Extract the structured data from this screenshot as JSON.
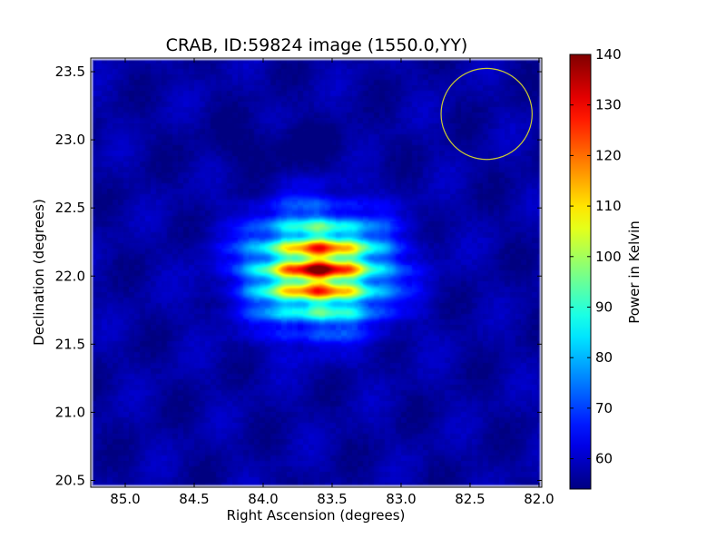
{
  "chart_data": {
    "type": "heatmap",
    "title": "CRAB, ID:59824 image (1550.0,YY)",
    "xlabel": "Right Ascension (degrees)",
    "ylabel": "Declination (degrees)",
    "colorbar_label": "Power in Kelvin",
    "xlim": [
      85.25,
      81.98
    ],
    "ylim": [
      20.45,
      23.6
    ],
    "x_ticks": [
      {
        "value": 85.0,
        "label": "85.0"
      },
      {
        "value": 84.5,
        "label": "84.5"
      },
      {
        "value": 84.0,
        "label": "84.0"
      },
      {
        "value": 83.5,
        "label": "83.5"
      },
      {
        "value": 83.0,
        "label": "83.0"
      },
      {
        "value": 82.5,
        "label": "82.5"
      },
      {
        "value": 82.0,
        "label": "82.0"
      }
    ],
    "y_ticks": [
      {
        "value": 20.5,
        "label": "20.5"
      },
      {
        "value": 21.0,
        "label": "21.0"
      },
      {
        "value": 21.5,
        "label": "21.5"
      },
      {
        "value": 22.0,
        "label": "22.0"
      },
      {
        "value": 22.5,
        "label": "22.5"
      },
      {
        "value": 23.0,
        "label": "23.0"
      },
      {
        "value": 23.5,
        "label": "23.5"
      }
    ],
    "colorbar_range": [
      54,
      140
    ],
    "colorbar_ticks": [
      {
        "value": 60,
        "label": "60"
      },
      {
        "value": 70,
        "label": "70"
      },
      {
        "value": 80,
        "label": "80"
      },
      {
        "value": 90,
        "label": "90"
      },
      {
        "value": 100,
        "label": "100"
      },
      {
        "value": 110,
        "label": "110"
      },
      {
        "value": 120,
        "label": "120"
      },
      {
        "value": 130,
        "label": "130"
      },
      {
        "value": 140,
        "label": "140"
      }
    ],
    "colormap": "jet",
    "source": {
      "ra": 83.6,
      "dec": 22.05,
      "peak": 140
    },
    "background_level": 57,
    "beam_circle": {
      "ra": 82.38,
      "dec": 23.19,
      "radius_deg": 0.33,
      "color": "#cccc33"
    }
  }
}
